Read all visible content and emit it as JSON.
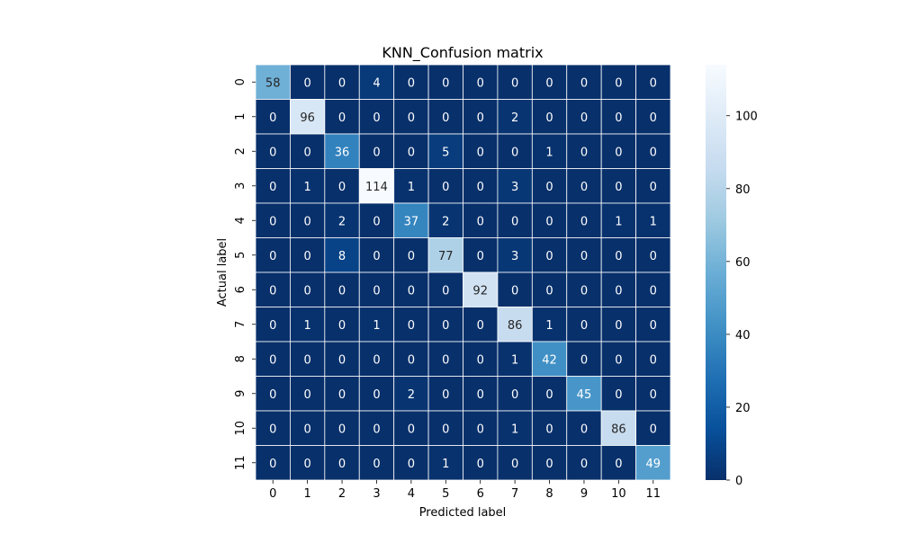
{
  "chart_data": {
    "type": "heatmap",
    "title": "KNN_Confusion matrix",
    "xlabel": "Predicted label",
    "ylabel": "Actual label",
    "x_categories": [
      "0",
      "1",
      "2",
      "3",
      "4",
      "5",
      "6",
      "7",
      "8",
      "9",
      "10",
      "11"
    ],
    "y_categories": [
      "0",
      "1",
      "2",
      "3",
      "4",
      "5",
      "6",
      "7",
      "8",
      "9",
      "10",
      "11"
    ],
    "matrix": [
      [
        58,
        0,
        0,
        4,
        0,
        0,
        0,
        0,
        0,
        0,
        0,
        0
      ],
      [
        0,
        96,
        0,
        0,
        0,
        0,
        0,
        2,
        0,
        0,
        0,
        0
      ],
      [
        0,
        0,
        36,
        0,
        0,
        5,
        0,
        0,
        1,
        0,
        0,
        0
      ],
      [
        0,
        1,
        0,
        114,
        1,
        0,
        0,
        3,
        0,
        0,
        0,
        0
      ],
      [
        0,
        0,
        2,
        0,
        37,
        2,
        0,
        0,
        0,
        0,
        1,
        1
      ],
      [
        0,
        0,
        8,
        0,
        0,
        77,
        0,
        3,
        0,
        0,
        0,
        0
      ],
      [
        0,
        0,
        0,
        0,
        0,
        0,
        92,
        0,
        0,
        0,
        0,
        0
      ],
      [
        0,
        1,
        0,
        1,
        0,
        0,
        0,
        86,
        1,
        0,
        0,
        0
      ],
      [
        0,
        0,
        0,
        0,
        0,
        0,
        0,
        1,
        42,
        0,
        0,
        0
      ],
      [
        0,
        0,
        0,
        0,
        2,
        0,
        0,
        0,
        0,
        45,
        0,
        0
      ],
      [
        0,
        0,
        0,
        0,
        0,
        0,
        0,
        1,
        0,
        0,
        86,
        0
      ],
      [
        0,
        0,
        0,
        0,
        0,
        1,
        0,
        0,
        0,
        0,
        0,
        49
      ]
    ],
    "colormap": "Blues_r",
    "colorbar": {
      "range": [
        0,
        114
      ],
      "ticks": [
        0,
        20,
        40,
        60,
        80,
        100
      ],
      "tick_labels": [
        "0",
        "20",
        "40",
        "60",
        "80",
        "100"
      ]
    },
    "annotations": true,
    "cell_border_color": "#ffffff"
  }
}
